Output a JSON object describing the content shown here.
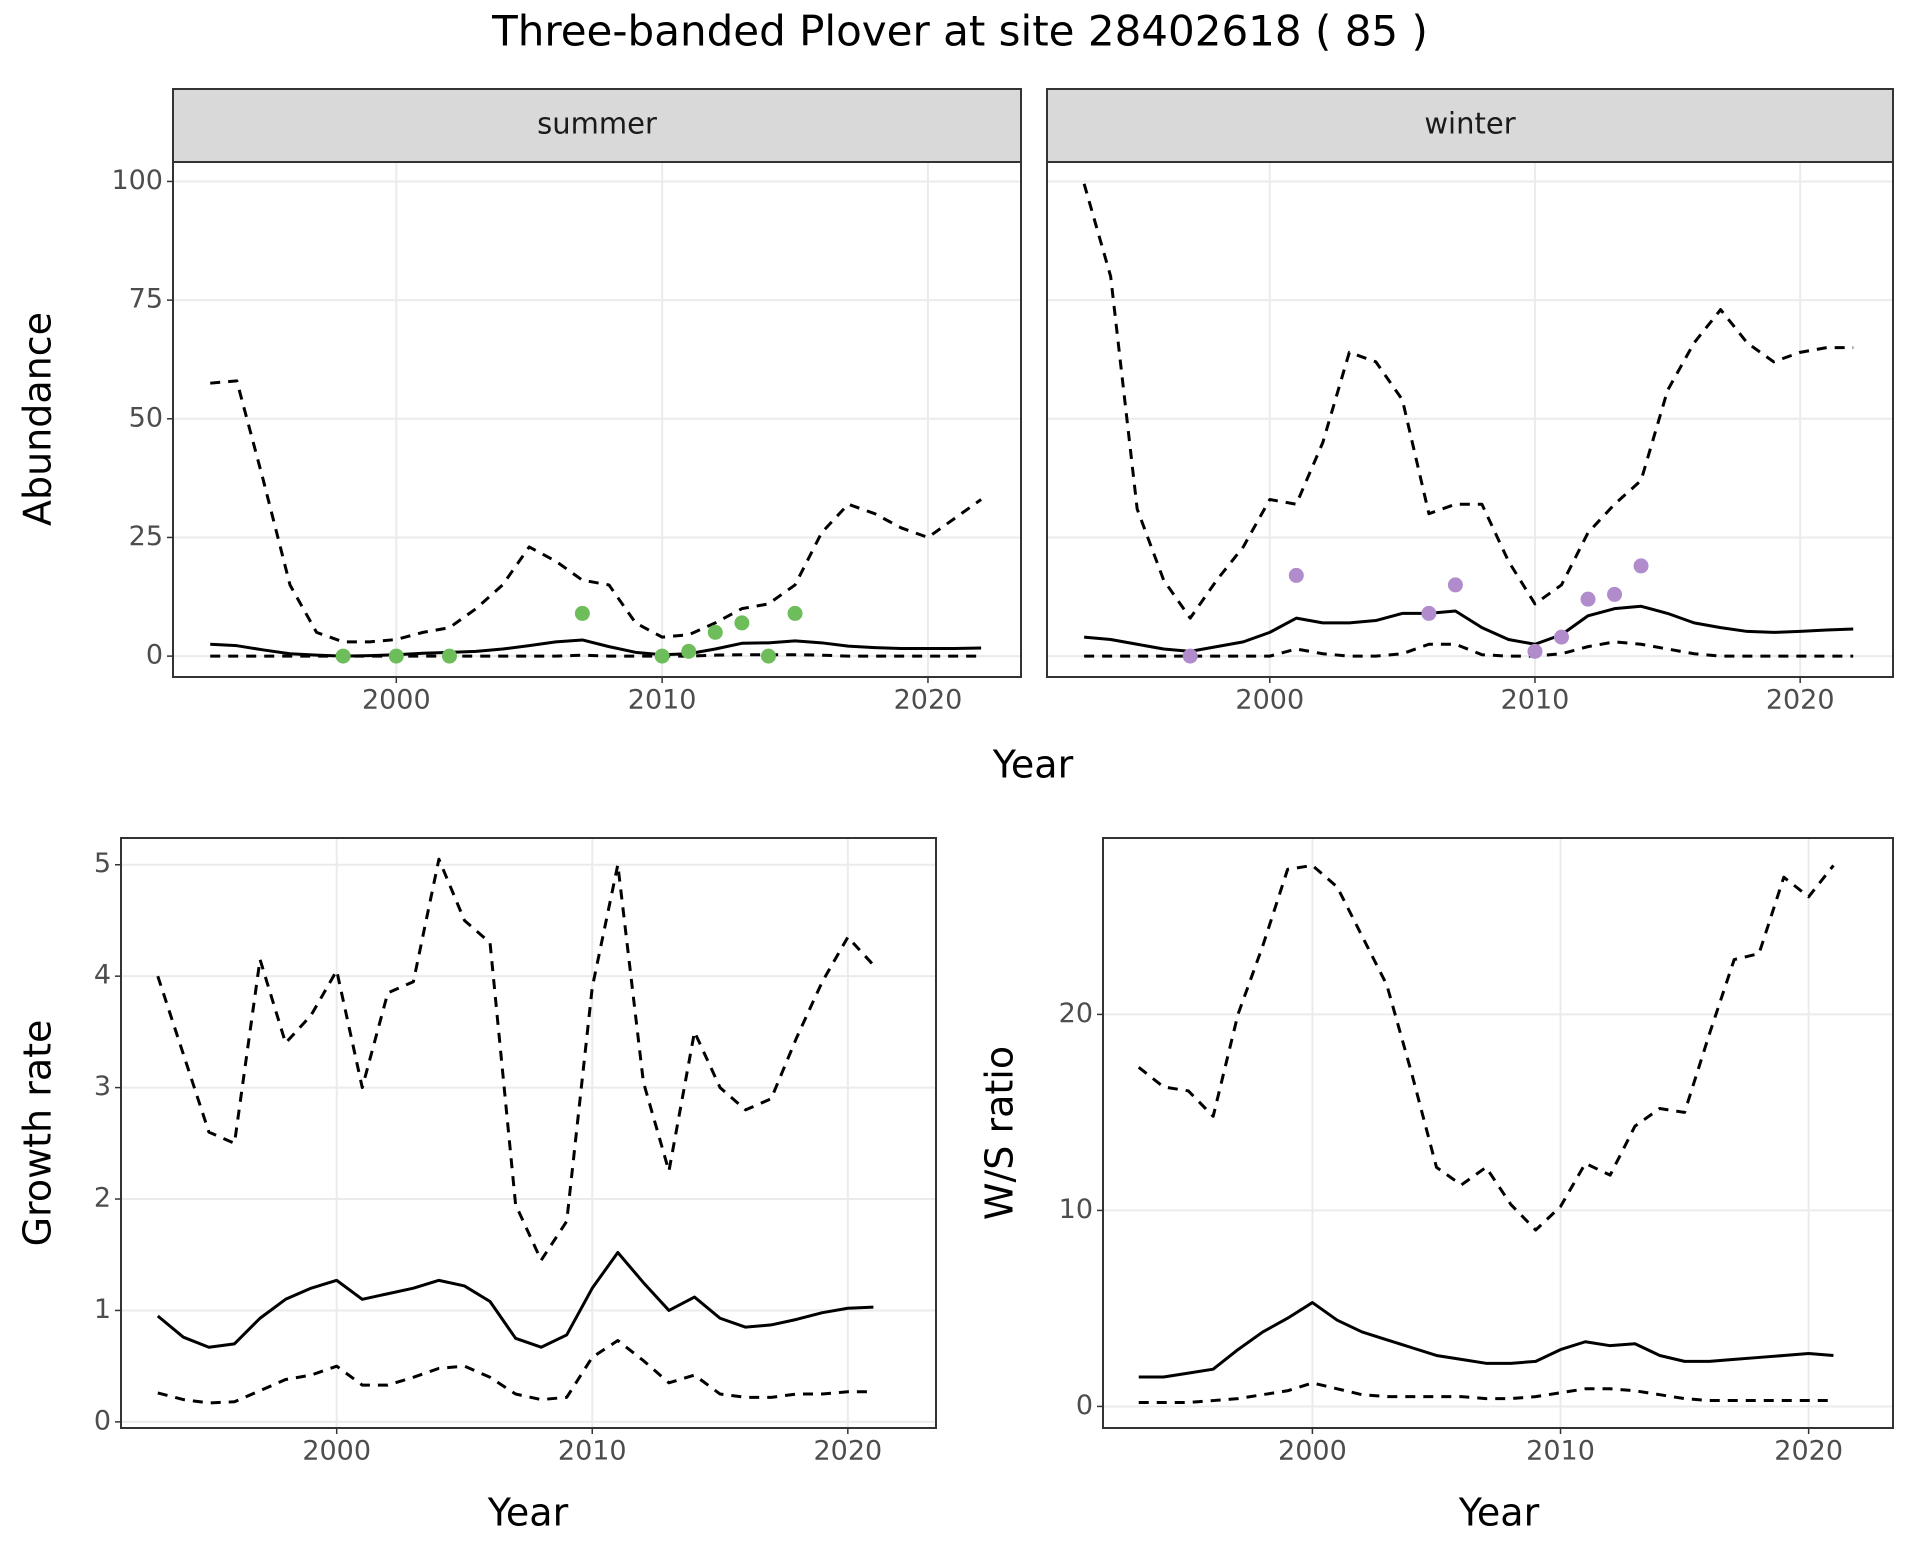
{
  "title": "Three-banded Plover at site 28402618 ( 85 )",
  "chart_data": [
    {
      "type": "line",
      "panel": "summer",
      "x_label": "Year",
      "y_label": "Abundance",
      "xlim": [
        1991.6,
        2023.5
      ],
      "ylim": [
        -4.4,
        104.1
      ],
      "xticks": [
        2000,
        2010,
        2020
      ],
      "yticks": [
        0,
        25,
        50,
        75,
        100
      ],
      "grid": true,
      "ytick_labels": true,
      "x": [
        1993,
        1994,
        1995,
        1996,
        1997,
        1998,
        1999,
        2000,
        2001,
        2002,
        2003,
        2004,
        2005,
        2006,
        2007,
        2008,
        2009,
        2010,
        2011,
        2012,
        2013,
        2014,
        2015,
        2016,
        2017,
        2018,
        2019,
        2020,
        2021,
        2022
      ],
      "series": [
        {
          "style": "dashed",
          "color": "#000000",
          "values": [
            57.5,
            58,
            37,
            15,
            5,
            3,
            3,
            3.5,
            5,
            6,
            10,
            15,
            23,
            20,
            16,
            15,
            7,
            4,
            4.5,
            7,
            10,
            11,
            15,
            26,
            32,
            30,
            27,
            25,
            29,
            33
          ]
        },
        {
          "style": "solid",
          "color": "#000000",
          "values": [
            2.5,
            2.2,
            1.3,
            0.5,
            0.2,
            0,
            0.1,
            0.3,
            0.6,
            0.8,
            1,
            1.5,
            2.2,
            3,
            3.4,
            2,
            0.8,
            0.3,
            0.5,
            1.5,
            2.7,
            2.8,
            3.2,
            2.8,
            2.1,
            1.8,
            1.6,
            1.6,
            1.6,
            1.7
          ]
        },
        {
          "style": "dashed",
          "color": "#000000",
          "values": [
            0,
            0,
            0,
            0,
            0,
            0,
            0,
            0,
            0,
            0,
            0,
            0,
            0,
            0,
            0.2,
            0,
            0,
            0,
            0,
            0.2,
            0.3,
            0.3,
            0.3,
            0.2,
            0,
            0,
            0,
            0,
            0,
            0
          ]
        },
        {
          "style": "points",
          "color": "#6dbd5a",
          "x": [
            1998,
            2000,
            2002,
            2007,
            2010,
            2011,
            2012,
            2013,
            2014,
            2015
          ],
          "values": [
            0,
            0,
            0,
            9,
            0,
            1,
            5,
            7,
            0,
            9
          ]
        }
      ]
    },
    {
      "type": "line",
      "panel": "winter",
      "xlim": [
        1991.6,
        2023.5
      ],
      "ylim": [
        -4.4,
        104.1
      ],
      "xticks": [
        2000,
        2010,
        2020
      ],
      "yticks": [
        0,
        25,
        50,
        75,
        100
      ],
      "grid": true,
      "ytick_labels": false,
      "x": [
        1993,
        1994,
        1995,
        1996,
        1997,
        1998,
        1999,
        2000,
        2001,
        2002,
        2003,
        2004,
        2005,
        2006,
        2007,
        2008,
        2009,
        2010,
        2011,
        2012,
        2013,
        2014,
        2015,
        2016,
        2017,
        2018,
        2019,
        2020,
        2021,
        2022
      ],
      "series": [
        {
          "style": "dashed",
          "color": "#000000",
          "values": [
            99.5,
            80,
            31,
            16,
            8,
            16,
            23,
            33,
            32,
            45,
            64,
            62,
            54,
            30,
            32,
            32,
            20,
            11,
            15,
            26,
            32,
            37,
            56,
            66,
            73,
            66,
            62,
            64,
            65,
            65
          ]
        },
        {
          "style": "solid",
          "color": "#000000",
          "values": [
            4,
            3.5,
            2.5,
            1.5,
            1,
            2,
            3,
            5,
            8,
            7,
            7,
            7.5,
            9,
            9,
            9.5,
            6,
            3.5,
            2.5,
            4.5,
            8.5,
            10,
            10.5,
            9,
            7,
            6,
            5.2,
            5,
            5.2,
            5.5,
            5.7
          ]
        },
        {
          "style": "dashed",
          "color": "#000000",
          "values": [
            0,
            0,
            0,
            0,
            0,
            0,
            0,
            0,
            1.5,
            0.5,
            0,
            0,
            0.5,
            2.5,
            2.5,
            0.3,
            0,
            0,
            0.5,
            2,
            3,
            2.5,
            1.5,
            0.5,
            0,
            0,
            0,
            0,
            0,
            0
          ]
        },
        {
          "style": "points",
          "color": "#b08ccc",
          "x": [
            1997,
            2001,
            2006,
            2007,
            2010,
            2011,
            2012,
            2013,
            2014
          ],
          "values": [
            0,
            17,
            9,
            15,
            1,
            4,
            12,
            13,
            19
          ]
        }
      ]
    },
    {
      "type": "line",
      "x_label": "Year",
      "y_label": "Growth rate",
      "xlim": [
        1991.56,
        2023.45
      ],
      "ylim": [
        -0.055,
        5.24
      ],
      "xticks": [
        2000,
        2010,
        2020
      ],
      "yticks": [
        0,
        1,
        2,
        3,
        4,
        5
      ],
      "grid": true,
      "ytick_labels": true,
      "x": [
        1993,
        1994,
        1995,
        1996,
        1997,
        1998,
        1999,
        2000,
        2001,
        2002,
        2003,
        2004,
        2005,
        2006,
        2007,
        2008,
        2009,
        2010,
        2011,
        2012,
        2013,
        2014,
        2015,
        2016,
        2017,
        2018,
        2019,
        2020,
        2021
      ],
      "series": [
        {
          "style": "dashed",
          "color": "#000000",
          "values": [
            4.0,
            3.3,
            2.6,
            2.5,
            4.15,
            3.4,
            3.65,
            4.05,
            3.0,
            3.85,
            3.95,
            5.05,
            4.5,
            4.3,
            1.95,
            1.45,
            1.8,
            3.9,
            5.0,
            3.05,
            2.25,
            3.5,
            3.0,
            2.8,
            2.9,
            3.45,
            3.95,
            4.35,
            4.1
          ]
        },
        {
          "style": "solid",
          "color": "#000000",
          "values": [
            0.95,
            0.76,
            0.67,
            0.7,
            0.93,
            1.1,
            1.2,
            1.27,
            1.1,
            1.15,
            1.2,
            1.27,
            1.22,
            1.08,
            0.75,
            0.67,
            0.78,
            1.2,
            1.52,
            1.25,
            1.0,
            1.12,
            0.93,
            0.85,
            0.87,
            0.92,
            0.98,
            1.02,
            1.03
          ]
        },
        {
          "style": "dashed",
          "color": "#000000",
          "values": [
            0.26,
            0.2,
            0.17,
            0.18,
            0.28,
            0.38,
            0.42,
            0.5,
            0.33,
            0.33,
            0.4,
            0.48,
            0.5,
            0.4,
            0.25,
            0.2,
            0.22,
            0.58,
            0.73,
            0.55,
            0.35,
            0.42,
            0.25,
            0.22,
            0.22,
            0.25,
            0.25,
            0.27,
            0.27
          ]
        }
      ]
    },
    {
      "type": "line",
      "x_label": "Year",
      "y_label": "W/S ratio",
      "xlim": [
        1991.56,
        2023.4
      ],
      "ylim": [
        -1.1,
        29
      ],
      "xticks": [
        2000,
        2010,
        2020
      ],
      "yticks": [
        0,
        10,
        20
      ],
      "grid": true,
      "ytick_labels": true,
      "x": [
        1993,
        1994,
        1995,
        1996,
        1997,
        1998,
        1999,
        2000,
        2001,
        2002,
        2003,
        2004,
        2005,
        2006,
        2007,
        2008,
        2009,
        2010,
        2011,
        2012,
        2013,
        2014,
        2015,
        2016,
        2017,
        2018,
        2019,
        2020,
        2021
      ],
      "series": [
        {
          "style": "dashed",
          "color": "#000000",
          "values": [
            17.3,
            16.3,
            16.1,
            14.8,
            20,
            23.5,
            27.4,
            27.6,
            26.5,
            24,
            21.5,
            17,
            12.2,
            11.3,
            12.2,
            10.3,
            9,
            10.2,
            12.4,
            11.8,
            14.3,
            15.2,
            15,
            19,
            22.8,
            23.1,
            27,
            26,
            27.6
          ]
        },
        {
          "style": "solid",
          "color": "#000000",
          "values": [
            1.5,
            1.5,
            1.7,
            1.9,
            2.9,
            3.8,
            4.5,
            5.3,
            4.4,
            3.8,
            3.4,
            3.0,
            2.6,
            2.4,
            2.2,
            2.2,
            2.3,
            2.9,
            3.3,
            3.1,
            3.2,
            2.6,
            2.3,
            2.3,
            2.4,
            2.5,
            2.6,
            2.7,
            2.6
          ]
        },
        {
          "style": "dashed",
          "color": "#000000",
          "values": [
            0.2,
            0.2,
            0.2,
            0.3,
            0.4,
            0.6,
            0.8,
            1.2,
            0.9,
            0.6,
            0.5,
            0.5,
            0.5,
            0.5,
            0.4,
            0.4,
            0.5,
            0.7,
            0.9,
            0.9,
            0.8,
            0.6,
            0.4,
            0.3,
            0.3,
            0.3,
            0.3,
            0.3,
            0.3
          ]
        }
      ]
    }
  ]
}
